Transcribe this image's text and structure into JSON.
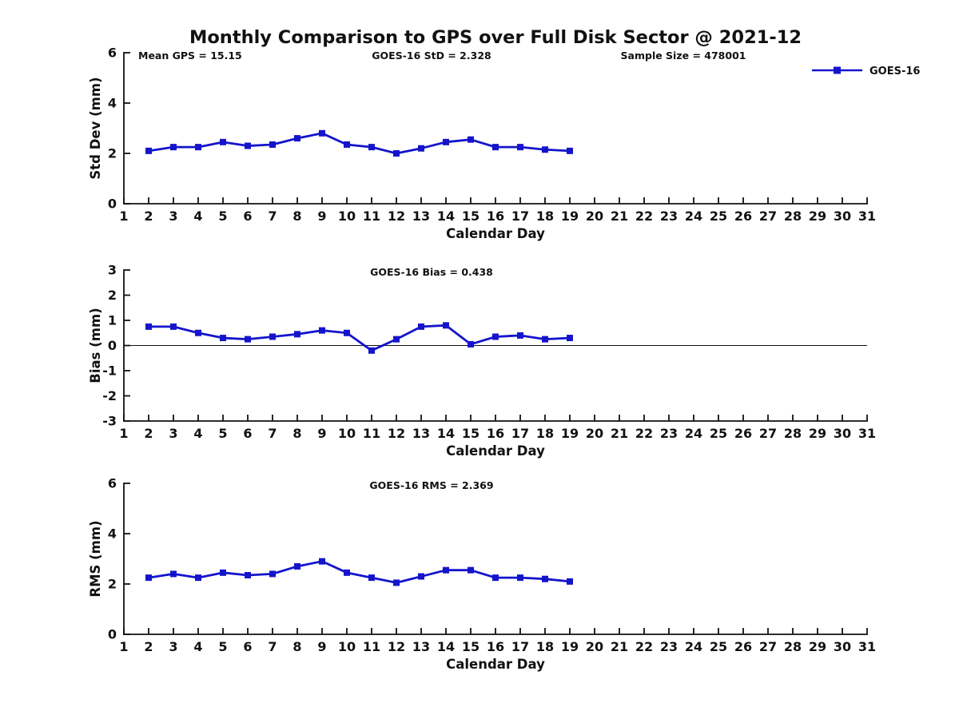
{
  "figure": {
    "title": "Monthly Comparison to GPS over Full Disk Sector @ 2021-12",
    "annotations": {
      "mean_gps": "Mean GPS = 15.15",
      "std": "GOES-16 StD = 2.328",
      "sample_size": "Sample Size = 478001"
    },
    "legend": {
      "label": "GOES-16",
      "position": "top-right",
      "marker": "square"
    }
  },
  "colors": {
    "series": "#1414CC",
    "axis": "#111111",
    "background": "#FFFFFF"
  },
  "chart_data": [
    {
      "type": "line",
      "title": "",
      "ylabel": "Std Dev (mm)",
      "xlabel": "Calendar Day",
      "series_name": "GOES-16",
      "marker": "square",
      "grid": false,
      "legend_position": "top-right",
      "xlim": [
        1,
        31
      ],
      "ylim": [
        0,
        6
      ],
      "yticks": [
        0,
        2,
        4,
        6
      ],
      "xticks": [
        1,
        2,
        3,
        4,
        5,
        6,
        7,
        8,
        9,
        10,
        11,
        12,
        13,
        14,
        15,
        16,
        17,
        18,
        19,
        20,
        21,
        22,
        23,
        24,
        25,
        26,
        27,
        28,
        29,
        30,
        31
      ],
      "x": [
        2,
        3,
        4,
        5,
        6,
        7,
        8,
        9,
        10,
        11,
        12,
        13,
        14,
        15,
        16,
        17,
        18,
        19
      ],
      "values": [
        2.1,
        2.25,
        2.25,
        2.45,
        2.3,
        2.35,
        2.6,
        2.8,
        2.35,
        2.25,
        2.0,
        2.2,
        2.45,
        2.55,
        2.25,
        2.25,
        2.15,
        2.1
      ]
    },
    {
      "type": "line",
      "title": "GOES-16 Bias = 0.438",
      "ylabel": "Bias (mm)",
      "xlabel": "Calendar Day",
      "series_name": "GOES-16",
      "marker": "square",
      "grid": false,
      "zero_line": true,
      "xlim": [
        1,
        31
      ],
      "ylim": [
        -3,
        3
      ],
      "yticks": [
        -3,
        -2,
        -1,
        0,
        1,
        2,
        3
      ],
      "xticks": [
        1,
        2,
        3,
        4,
        5,
        6,
        7,
        8,
        9,
        10,
        11,
        12,
        13,
        14,
        15,
        16,
        17,
        18,
        19,
        20,
        21,
        22,
        23,
        24,
        25,
        26,
        27,
        28,
        29,
        30,
        31
      ],
      "x": [
        2,
        3,
        4,
        5,
        6,
        7,
        8,
        9,
        10,
        11,
        12,
        13,
        14,
        15,
        16,
        17,
        18,
        19
      ],
      "values": [
        0.75,
        0.75,
        0.5,
        0.3,
        0.25,
        0.35,
        0.45,
        0.6,
        0.5,
        -0.2,
        0.25,
        0.75,
        0.8,
        0.05,
        0.35,
        0.4,
        0.25,
        0.3
      ]
    },
    {
      "type": "line",
      "title": "GOES-16 RMS = 2.369",
      "ylabel": "RMS (mm)",
      "xlabel": "Calendar Day",
      "series_name": "GOES-16",
      "marker": "square",
      "grid": false,
      "xlim": [
        1,
        31
      ],
      "ylim": [
        0,
        6
      ],
      "yticks": [
        0,
        2,
        4,
        6
      ],
      "xticks": [
        1,
        2,
        3,
        4,
        5,
        6,
        7,
        8,
        9,
        10,
        11,
        12,
        13,
        14,
        15,
        16,
        17,
        18,
        19,
        20,
        21,
        22,
        23,
        24,
        25,
        26,
        27,
        28,
        29,
        30,
        31
      ],
      "x": [
        2,
        3,
        4,
        5,
        6,
        7,
        8,
        9,
        10,
        11,
        12,
        13,
        14,
        15,
        16,
        17,
        18,
        19
      ],
      "values": [
        2.25,
        2.4,
        2.25,
        2.45,
        2.35,
        2.4,
        2.7,
        2.9,
        2.45,
        2.25,
        2.05,
        2.3,
        2.55,
        2.55,
        2.25,
        2.25,
        2.2,
        2.1
      ]
    }
  ]
}
